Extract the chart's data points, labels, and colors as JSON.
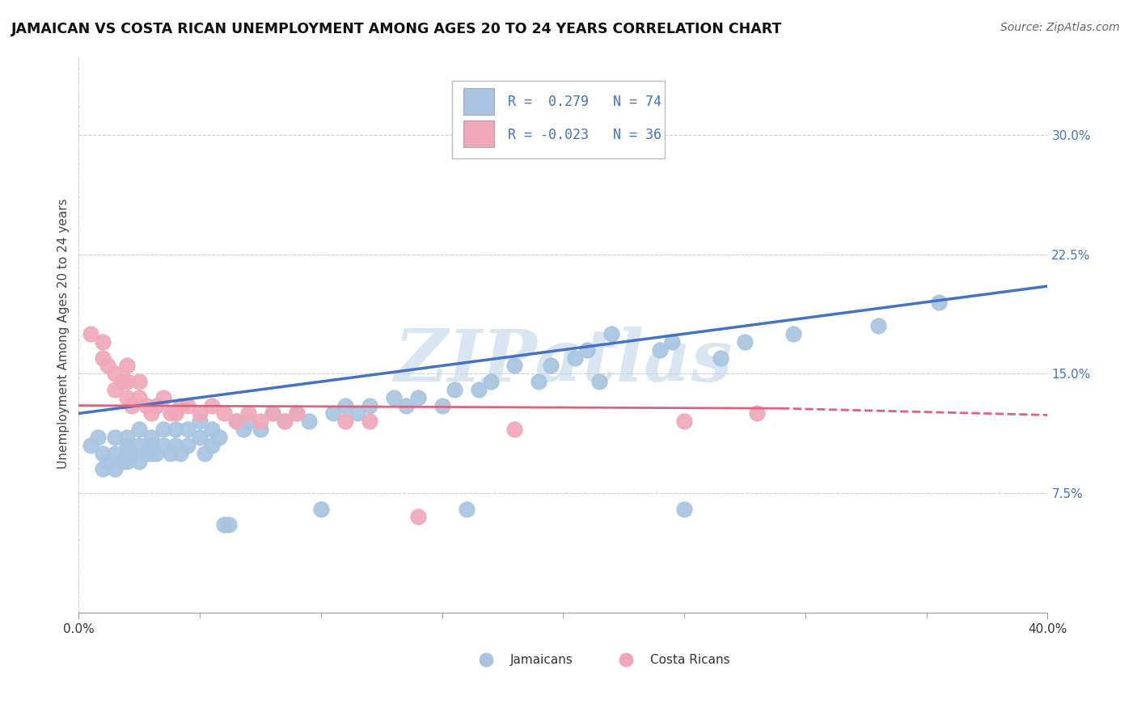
{
  "title": "JAMAICAN VS COSTA RICAN UNEMPLOYMENT AMONG AGES 20 TO 24 YEARS CORRELATION CHART",
  "source": "Source: ZipAtlas.com",
  "ylabel": "Unemployment Among Ages 20 to 24 years",
  "background_color": "#ffffff",
  "plot_bg_color": "#ffffff",
  "grid_color": "#cccccc",
  "watermark": "ZIPatlas",
  "watermark_color": "#c0d4e8",
  "xlim": [
    0.0,
    0.4
  ],
  "ylim": [
    0.0,
    0.35
  ],
  "xticks_minor": [
    0.05,
    0.1,
    0.15,
    0.2,
    0.25,
    0.3,
    0.35
  ],
  "xtick_left": "0.0%",
  "xtick_right": "40.0%",
  "yticks": [
    0.075,
    0.15,
    0.225,
    0.3
  ],
  "ytick_labels": [
    "7.5%",
    "15.0%",
    "22.5%",
    "30.0%"
  ],
  "jamaicans_color": "#a8c4e0",
  "costa_ricans_color": "#f0a8b8",
  "jamaicans_edge_color": "#90b0d0",
  "costa_ricans_edge_color": "#e090a8",
  "jamaicans_line_color": "#4472c4",
  "costa_ricans_line_color": "#e06080",
  "legend_R_jamaicans": "0.279",
  "legend_N_jamaicans": "74",
  "legend_R_costa_ricans": "-0.023",
  "legend_N_costa_ricans": "36",
  "jamaicans_x": [
    0.005,
    0.008,
    0.01,
    0.01,
    0.012,
    0.015,
    0.015,
    0.015,
    0.018,
    0.02,
    0.02,
    0.02,
    0.02,
    0.022,
    0.025,
    0.025,
    0.025,
    0.028,
    0.03,
    0.03,
    0.03,
    0.032,
    0.035,
    0.035,
    0.038,
    0.04,
    0.04,
    0.042,
    0.045,
    0.045,
    0.05,
    0.05,
    0.052,
    0.055,
    0.055,
    0.058,
    0.06,
    0.062,
    0.065,
    0.068,
    0.07,
    0.075,
    0.08,
    0.085,
    0.09,
    0.095,
    0.1,
    0.105,
    0.11,
    0.115,
    0.12,
    0.13,
    0.135,
    0.14,
    0.15,
    0.155,
    0.16,
    0.165,
    0.17,
    0.18,
    0.19,
    0.195,
    0.205,
    0.21,
    0.215,
    0.22,
    0.24,
    0.245,
    0.25,
    0.265,
    0.275,
    0.295,
    0.33,
    0.355
  ],
  "jamaicans_y": [
    0.105,
    0.11,
    0.09,
    0.1,
    0.095,
    0.09,
    0.1,
    0.11,
    0.095,
    0.1,
    0.105,
    0.11,
    0.095,
    0.1,
    0.095,
    0.105,
    0.115,
    0.1,
    0.1,
    0.11,
    0.105,
    0.1,
    0.105,
    0.115,
    0.1,
    0.105,
    0.115,
    0.1,
    0.105,
    0.115,
    0.11,
    0.12,
    0.1,
    0.115,
    0.105,
    0.11,
    0.055,
    0.055,
    0.12,
    0.115,
    0.12,
    0.115,
    0.125,
    0.12,
    0.125,
    0.12,
    0.065,
    0.125,
    0.13,
    0.125,
    0.13,
    0.135,
    0.13,
    0.135,
    0.13,
    0.14,
    0.065,
    0.14,
    0.145,
    0.155,
    0.145,
    0.155,
    0.16,
    0.165,
    0.145,
    0.175,
    0.165,
    0.17,
    0.065,
    0.16,
    0.17,
    0.175,
    0.18,
    0.195
  ],
  "costa_ricans_x": [
    0.005,
    0.01,
    0.01,
    0.012,
    0.015,
    0.015,
    0.018,
    0.02,
    0.02,
    0.02,
    0.022,
    0.025,
    0.025,
    0.028,
    0.03,
    0.032,
    0.035,
    0.038,
    0.04,
    0.042,
    0.045,
    0.05,
    0.055,
    0.06,
    0.065,
    0.07,
    0.075,
    0.08,
    0.085,
    0.09,
    0.11,
    0.12,
    0.14,
    0.18,
    0.25,
    0.28
  ],
  "costa_ricans_y": [
    0.175,
    0.16,
    0.17,
    0.155,
    0.14,
    0.15,
    0.145,
    0.135,
    0.145,
    0.155,
    0.13,
    0.135,
    0.145,
    0.13,
    0.125,
    0.13,
    0.135,
    0.125,
    0.125,
    0.13,
    0.13,
    0.125,
    0.13,
    0.125,
    0.12,
    0.125,
    0.12,
    0.125,
    0.12,
    0.125,
    0.12,
    0.12,
    0.06,
    0.115,
    0.12,
    0.125
  ]
}
